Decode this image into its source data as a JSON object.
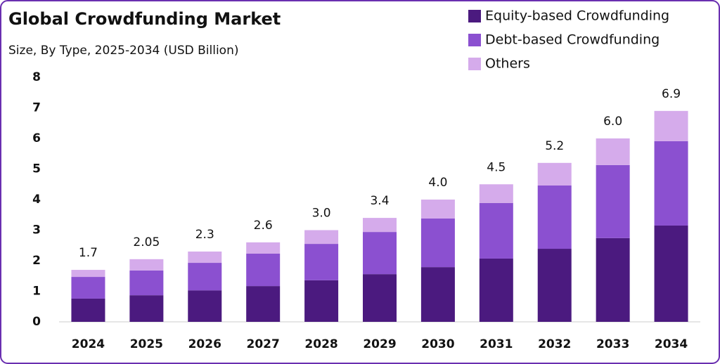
{
  "chart_data": {
    "type": "stacked_bar",
    "title": "Global Crowdfunding Market",
    "subtitle": "Size, By Type, 2025-2034 (USD Billion)",
    "categories": [
      "2024",
      "2025",
      "2026",
      "2027",
      "2028",
      "2029",
      "2030",
      "2031",
      "2032",
      "2033",
      "2034"
    ],
    "series": [
      {
        "name": "Equity-based Crowdfunding",
        "color": "#4b1a7f",
        "values": [
          0.76,
          0.87,
          1.03,
          1.17,
          1.36,
          1.56,
          1.79,
          2.07,
          2.39,
          2.74,
          3.15
        ]
      },
      {
        "name": "Debt-based Crowdfunding",
        "color": "#8b50d0",
        "values": [
          0.71,
          0.81,
          0.9,
          1.06,
          1.19,
          1.38,
          1.59,
          1.82,
          2.07,
          2.39,
          2.76
        ]
      },
      {
        "name": "Others",
        "color": "#d5abeb",
        "values": [
          0.23,
          0.37,
          0.37,
          0.37,
          0.45,
          0.46,
          0.62,
          0.61,
          0.74,
          0.87,
          0.99
        ]
      }
    ],
    "totals": [
      1.7,
      2.05,
      2.3,
      2.6,
      3.0,
      3.4,
      4.0,
      4.5,
      5.2,
      6.0,
      6.9
    ],
    "total_labels": [
      "1.7",
      "2.05",
      "2.3",
      "2.6",
      "3.0",
      "3.4",
      "4.0",
      "4.5",
      "5.2",
      "6.0",
      "6.9"
    ],
    "ylim": [
      0,
      8
    ],
    "yticks": [
      0,
      1,
      2,
      3,
      4,
      5,
      6,
      7,
      8
    ],
    "grid": false,
    "legend": "top-right"
  }
}
